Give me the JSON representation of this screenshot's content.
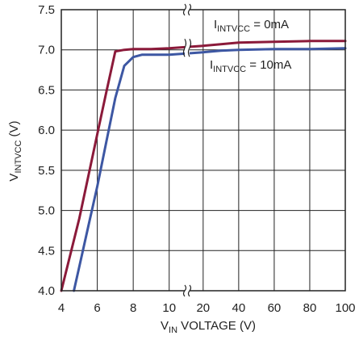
{
  "chart_data": {
    "type": "line",
    "xlabel": {
      "main": "V",
      "sub": "IN",
      "rest": " VOLTAGE (V)"
    },
    "ylabel": {
      "main": "V",
      "sub": "INTVCC",
      "rest": " (V)"
    },
    "x_scale": "broken: linear 4–11 (left segment), linear 11–100 (right segment)",
    "x_ticks": [
      "4",
      "6",
      "8",
      "10",
      "20",
      "40",
      "60",
      "80",
      "100"
    ],
    "y_ticks": [
      "4.0",
      "4.5",
      "5.0",
      "5.5",
      "6.0",
      "6.5",
      "7.0",
      "7.5"
    ],
    "xlim": [
      4,
      100
    ],
    "ylim": [
      4.0,
      7.5
    ],
    "grid": true,
    "axis_break": "between 10 and 20 on the x-axis",
    "colors": {
      "series_0mA": "#8b1a3a",
      "series_10mA": "#3d57a3"
    },
    "series": [
      {
        "name": {
          "main": "I",
          "sub": "INTVCC",
          "rest": " = 0mA"
        },
        "x": [
          4.0,
          5.0,
          6.0,
          6.5,
          7.0,
          7.5,
          8.0,
          9.0,
          10.0,
          20,
          30,
          40,
          60,
          80,
          100
        ],
        "y": [
          4.0,
          4.9,
          5.95,
          6.47,
          6.98,
          7.0,
          7.01,
          7.01,
          7.02,
          7.05,
          7.07,
          7.09,
          7.1,
          7.11,
          7.11
        ]
      },
      {
        "name": {
          "main": "I",
          "sub": "INTVCC",
          "rest": " = 10mA"
        },
        "x": [
          4.7,
          5.0,
          5.5,
          6.0,
          6.5,
          7.0,
          7.5,
          8.0,
          8.5,
          9.0,
          10.0,
          20,
          30,
          40,
          60,
          80,
          100
        ],
        "y": [
          4.0,
          4.3,
          4.8,
          5.3,
          5.85,
          6.4,
          6.8,
          6.91,
          6.94,
          6.94,
          6.94,
          6.97,
          6.99,
          7.0,
          7.01,
          7.01,
          7.02
        ]
      }
    ]
  }
}
